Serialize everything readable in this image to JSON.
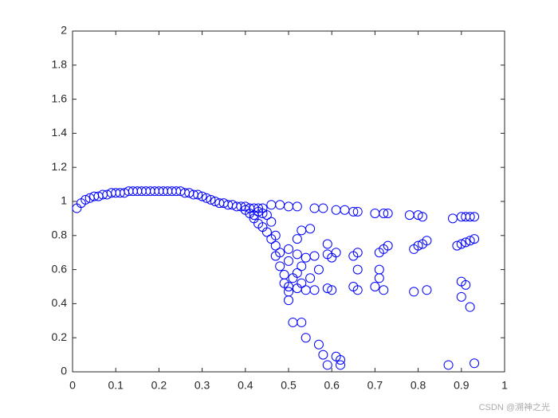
{
  "chart_data": {
    "type": "scatter",
    "color": "#0000ff",
    "marker": "circle-open",
    "xlim": [
      0,
      1
    ],
    "ylim": [
      0,
      2
    ],
    "xticks": [
      0,
      0.1,
      0.2,
      0.3,
      0.4,
      0.5,
      0.6,
      0.7,
      0.8,
      0.9,
      1
    ],
    "yticks": [
      0,
      0.2,
      0.4,
      0.6,
      0.8,
      1,
      1.2,
      1.4,
      1.6,
      1.8,
      2
    ],
    "watermark": "CSDN @溯神之光",
    "x": [
      0.01,
      0.02,
      0.03,
      0.04,
      0.05,
      0.06,
      0.07,
      0.08,
      0.09,
      0.1,
      0.11,
      0.12,
      0.13,
      0.14,
      0.15,
      0.16,
      0.17,
      0.18,
      0.19,
      0.2,
      0.21,
      0.22,
      0.23,
      0.24,
      0.25,
      0.26,
      0.27,
      0.28,
      0.29,
      0.3,
      0.31,
      0.32,
      0.33,
      0.34,
      0.35,
      0.36,
      0.37,
      0.38,
      0.39,
      0.4,
      0.41,
      0.42,
      0.43,
      0.44,
      0.46,
      0.48,
      0.5,
      0.52,
      0.56,
      0.58,
      0.61,
      0.63,
      0.65,
      0.66,
      0.7,
      0.72,
      0.73,
      0.78,
      0.8,
      0.81,
      0.88,
      0.9,
      0.91,
      0.92,
      0.93,
      0.41,
      0.42,
      0.43,
      0.44,
      0.45,
      0.46,
      0.47,
      0.47,
      0.48,
      0.49,
      0.49,
      0.5,
      0.5,
      0.51,
      0.53,
      0.54,
      0.57,
      0.58,
      0.59,
      0.61,
      0.62,
      0.62,
      0.5,
      0.52,
      0.54,
      0.56,
      0.59,
      0.6,
      0.61,
      0.65,
      0.66,
      0.71,
      0.72,
      0.73,
      0.79,
      0.8,
      0.81,
      0.82,
      0.89,
      0.9,
      0.91,
      0.92,
      0.93,
      0.5,
      0.52,
      0.54,
      0.56,
      0.59,
      0.6,
      0.65,
      0.66,
      0.7,
      0.71,
      0.72,
      0.79,
      0.82,
      0.9,
      0.91,
      0.9,
      0.92,
      0.93,
      0.87,
      0.71,
      0.66,
      0.59,
      0.55,
      0.53,
      0.52,
      0.52,
      0.53,
      0.55,
      0.57,
      0.51,
      0.53,
      0.5,
      0.48,
      0.47,
      0.46,
      0.45,
      0.44,
      0.43,
      0.4,
      0.42
    ],
    "y": [
      0.96,
      0.99,
      1.01,
      1.02,
      1.03,
      1.03,
      1.04,
      1.04,
      1.05,
      1.05,
      1.05,
      1.05,
      1.06,
      1.06,
      1.06,
      1.06,
      1.06,
      1.06,
      1.06,
      1.06,
      1.06,
      1.06,
      1.06,
      1.06,
      1.06,
      1.05,
      1.05,
      1.04,
      1.04,
      1.03,
      1.02,
      1.01,
      1.0,
      0.99,
      0.99,
      0.98,
      0.98,
      0.97,
      0.97,
      0.97,
      0.96,
      0.96,
      0.96,
      0.96,
      0.98,
      0.98,
      0.97,
      0.97,
      0.96,
      0.96,
      0.95,
      0.95,
      0.94,
      0.94,
      0.93,
      0.93,
      0.93,
      0.92,
      0.92,
      0.91,
      0.9,
      0.91,
      0.91,
      0.91,
      0.91,
      0.93,
      0.9,
      0.87,
      0.85,
      0.82,
      0.78,
      0.74,
      0.68,
      0.62,
      0.57,
      0.52,
      0.47,
      0.42,
      0.29,
      0.29,
      0.2,
      0.16,
      0.1,
      0.04,
      0.09,
      0.07,
      0.04,
      0.72,
      0.69,
      0.67,
      0.68,
      0.69,
      0.67,
      0.7,
      0.68,
      0.7,
      0.7,
      0.72,
      0.74,
      0.72,
      0.74,
      0.75,
      0.77,
      0.74,
      0.75,
      0.76,
      0.77,
      0.78,
      0.5,
      0.49,
      0.48,
      0.48,
      0.49,
      0.48,
      0.5,
      0.48,
      0.5,
      0.55,
      0.48,
      0.47,
      0.48,
      0.53,
      0.51,
      0.44,
      0.38,
      0.05,
      0.04,
      0.6,
      0.6,
      0.75,
      0.84,
      0.83,
      0.78,
      0.58,
      0.62,
      0.55,
      0.6,
      0.55,
      0.52,
      0.65,
      0.7,
      0.8,
      0.88,
      0.92,
      0.93,
      0.94,
      0.95,
      0.92
    ]
  }
}
